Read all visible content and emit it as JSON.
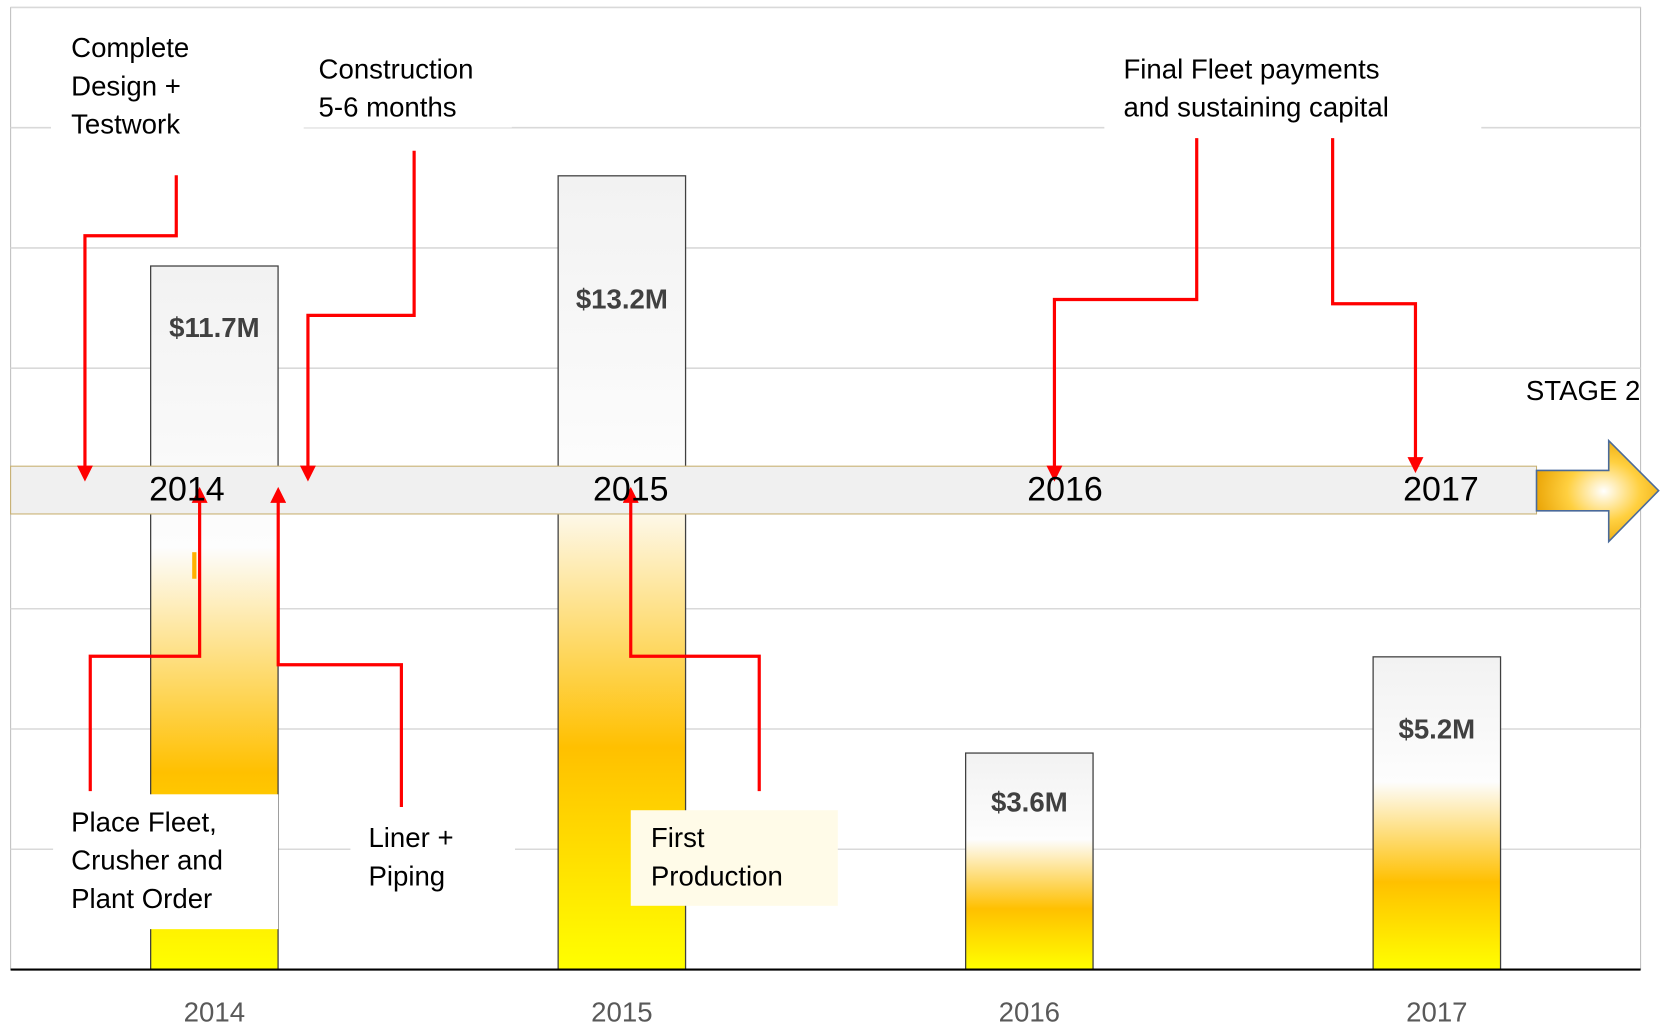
{
  "chart_data": {
    "type": "bar",
    "categories": [
      "2014",
      "2015",
      "2016",
      "2017"
    ],
    "values": [
      11.7,
      13.2,
      3.6,
      5.2
    ],
    "value_labels": [
      "$11.7M",
      "$13.2M",
      "$3.6M",
      "$5.2M"
    ],
    "ylim": [
      0,
      16
    ],
    "yticks": [
      0,
      2,
      4,
      6,
      8,
      10,
      12,
      14,
      16
    ],
    "grid": true,
    "timeline": {
      "labels": [
        "2014",
        "2015",
        "2016",
        "2017"
      ],
      "end_label": "STAGE 2"
    },
    "annotations": [
      {
        "lines": [
          "Complete",
          "Design +",
          "Testwork"
        ]
      },
      {
        "lines": [
          "Construction",
          "5-6 months"
        ]
      },
      {
        "lines": [
          "Final Fleet payments",
          "and sustaining capital"
        ]
      },
      {
        "lines": [
          "Place Fleet,",
          "Crusher and",
          "Plant Order"
        ]
      },
      {
        "lines": [
          "Liner +",
          "Piping"
        ]
      },
      {
        "lines": [
          "First",
          "Production"
        ]
      }
    ]
  }
}
